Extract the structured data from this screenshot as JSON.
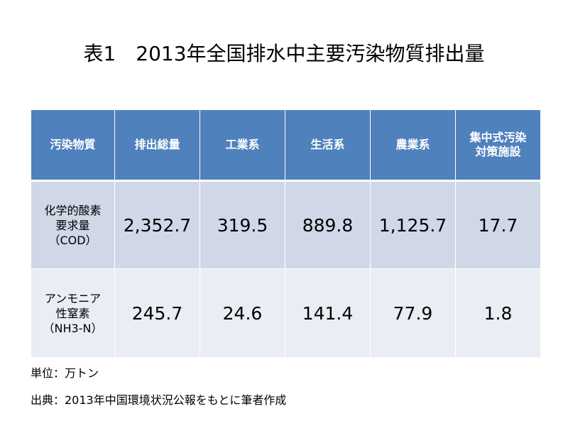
{
  "title": "表1　2013年全国排水中主要汚染物質排出量",
  "table": {
    "headers": [
      "汚染物質",
      "排出総量",
      "工業系",
      "生活系",
      "農業系",
      "集中式汚染",
      "対策施設"
    ],
    "rows": [
      {
        "label_lines": [
          "化学的酸素",
          "要求量",
          "（COD）"
        ],
        "values": [
          "2,352.7",
          "319.5",
          "889.8",
          "1,125.7",
          "17.7"
        ]
      },
      {
        "label_lines": [
          "アンモニア",
          "性窒素",
          "（NH3-N）"
        ],
        "values": [
          "245.7",
          "24.6",
          "141.4",
          "77.9",
          "1.8"
        ]
      }
    ]
  },
  "notes": {
    "unit": "単位：万トン",
    "source": "出典：2013年中国環境状況公報をもとに筆者作成"
  }
}
